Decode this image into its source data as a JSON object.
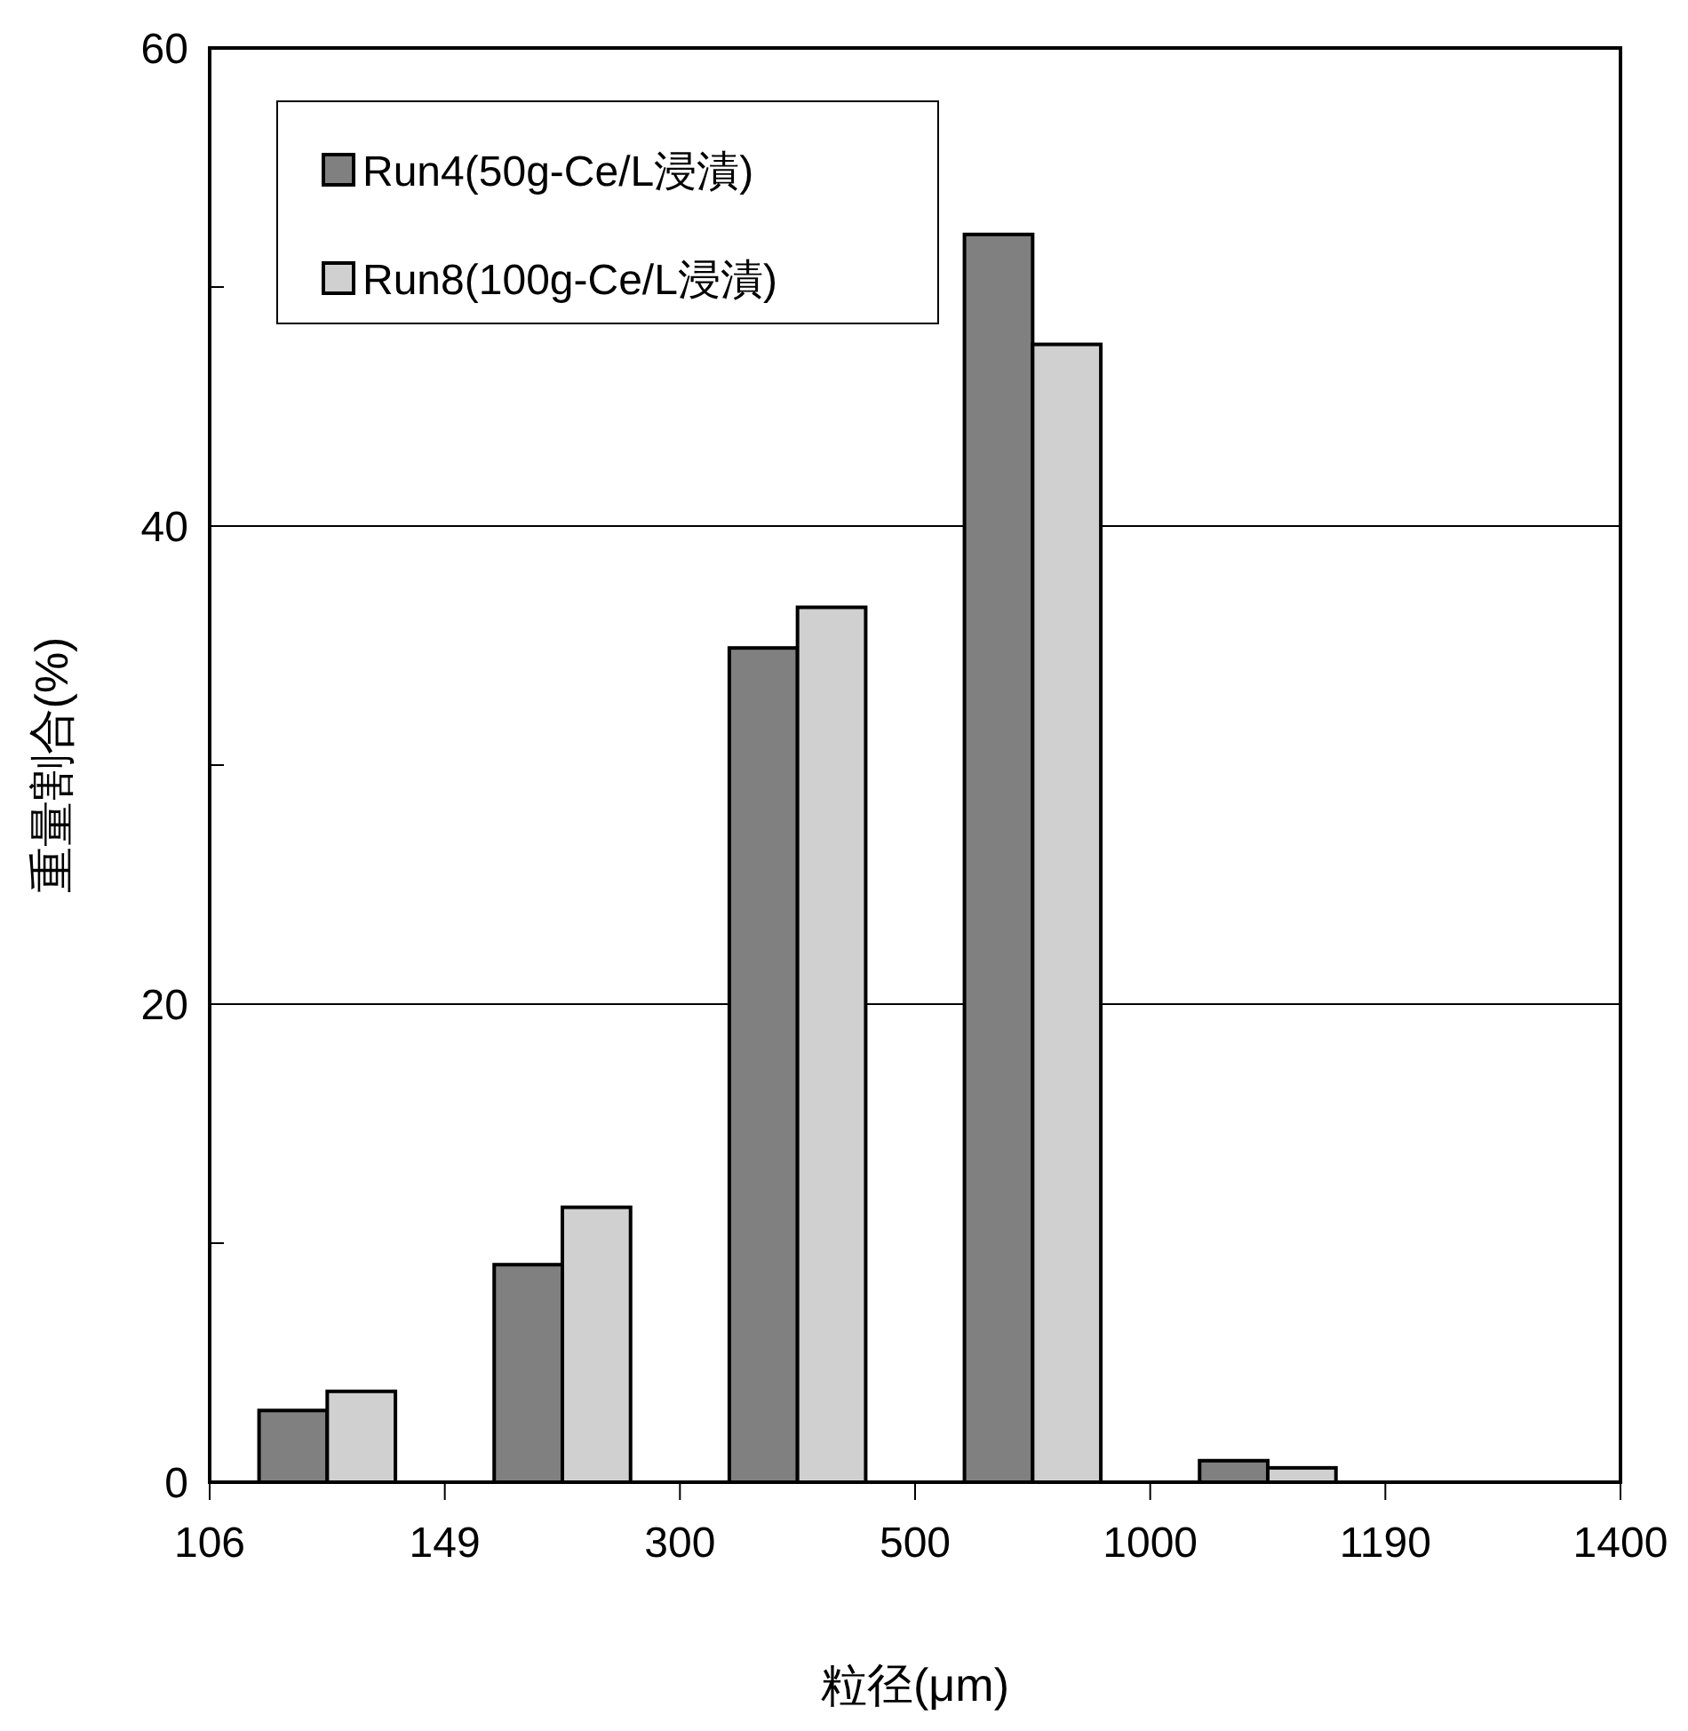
{
  "chart_data": {
    "type": "bar",
    "xlabel": "粒径(μm)",
    "ylabel": "重量割合(%)",
    "categories": [
      "106",
      null,
      "149",
      null,
      "300",
      null,
      "500",
      null,
      "1000",
      null,
      "1190",
      null,
      "1400"
    ],
    "ylim": [
      0,
      60
    ],
    "yticks": [
      0,
      {
        "value": 10,
        "label": null
      },
      20,
      {
        "value": 30,
        "label": null
      },
      40,
      {
        "value": 50,
        "label": null
      },
      60
    ],
    "series": [
      {
        "name": "Run4(50g-Ce/L浸漬)",
        "color": "#808080",
        "values": [
          null,
          3.0,
          null,
          9.1,
          null,
          34.9,
          null,
          52.2,
          null,
          0.9,
          null,
          0,
          null
        ]
      },
      {
        "name": "Run8(100g-Ce/L浸漬)",
        "color": "#d0d0d0",
        "values": [
          null,
          3.8,
          null,
          11.5,
          null,
          36.6,
          null,
          47.6,
          null,
          0.6,
          null,
          0,
          null
        ]
      }
    ],
    "grid": "y",
    "legend": "top left"
  }
}
